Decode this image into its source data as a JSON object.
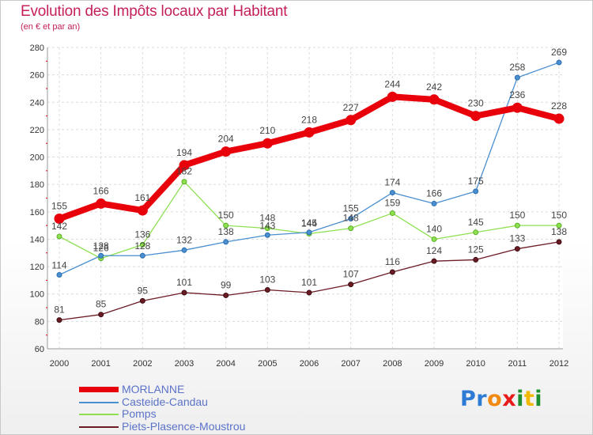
{
  "title": "Evolution des Impôts locaux par Habitant",
  "subtitle": "(en € et par an)",
  "colors": {
    "title": "#c4205b",
    "legendText": "#5b72c8"
  },
  "chart_data": {
    "type": "line",
    "categories": [
      "2000",
      "2001",
      "2002",
      "2003",
      "2004",
      "2005",
      "2006",
      "2007",
      "2008",
      "2009",
      "2010",
      "2011",
      "2012"
    ],
    "ylim": [
      60,
      280
    ],
    "yticks": [
      60,
      80,
      100,
      120,
      140,
      160,
      180,
      200,
      220,
      240,
      260,
      280
    ],
    "grid": true,
    "series": [
      {
        "name": "MORLANNE",
        "color": "#e8000b",
        "values": [
          155,
          166,
          161,
          194,
          204,
          210,
          218,
          227,
          244,
          242,
          230,
          236,
          228
        ]
      },
      {
        "name": "Casteide-Candau",
        "color": "#4a8fd0",
        "values": [
          114,
          128,
          128,
          132,
          138,
          143,
          145,
          155,
          174,
          166,
          175,
          258,
          269
        ]
      },
      {
        "name": "Pomps",
        "color": "#8ee051",
        "values": [
          142,
          126,
          136,
          182,
          150,
          148,
          144,
          148,
          159,
          140,
          145,
          150,
          150
        ]
      },
      {
        "name": "Piets-Plasence-Moustrou",
        "color": "#6b1b24",
        "values": [
          81,
          85,
          95,
          101,
          99,
          103,
          101,
          107,
          116,
          124,
          125,
          133,
          138
        ]
      }
    ]
  },
  "logo": {
    "letters": [
      "P",
      "r",
      "o",
      "x",
      "i",
      "t",
      "i"
    ]
  }
}
